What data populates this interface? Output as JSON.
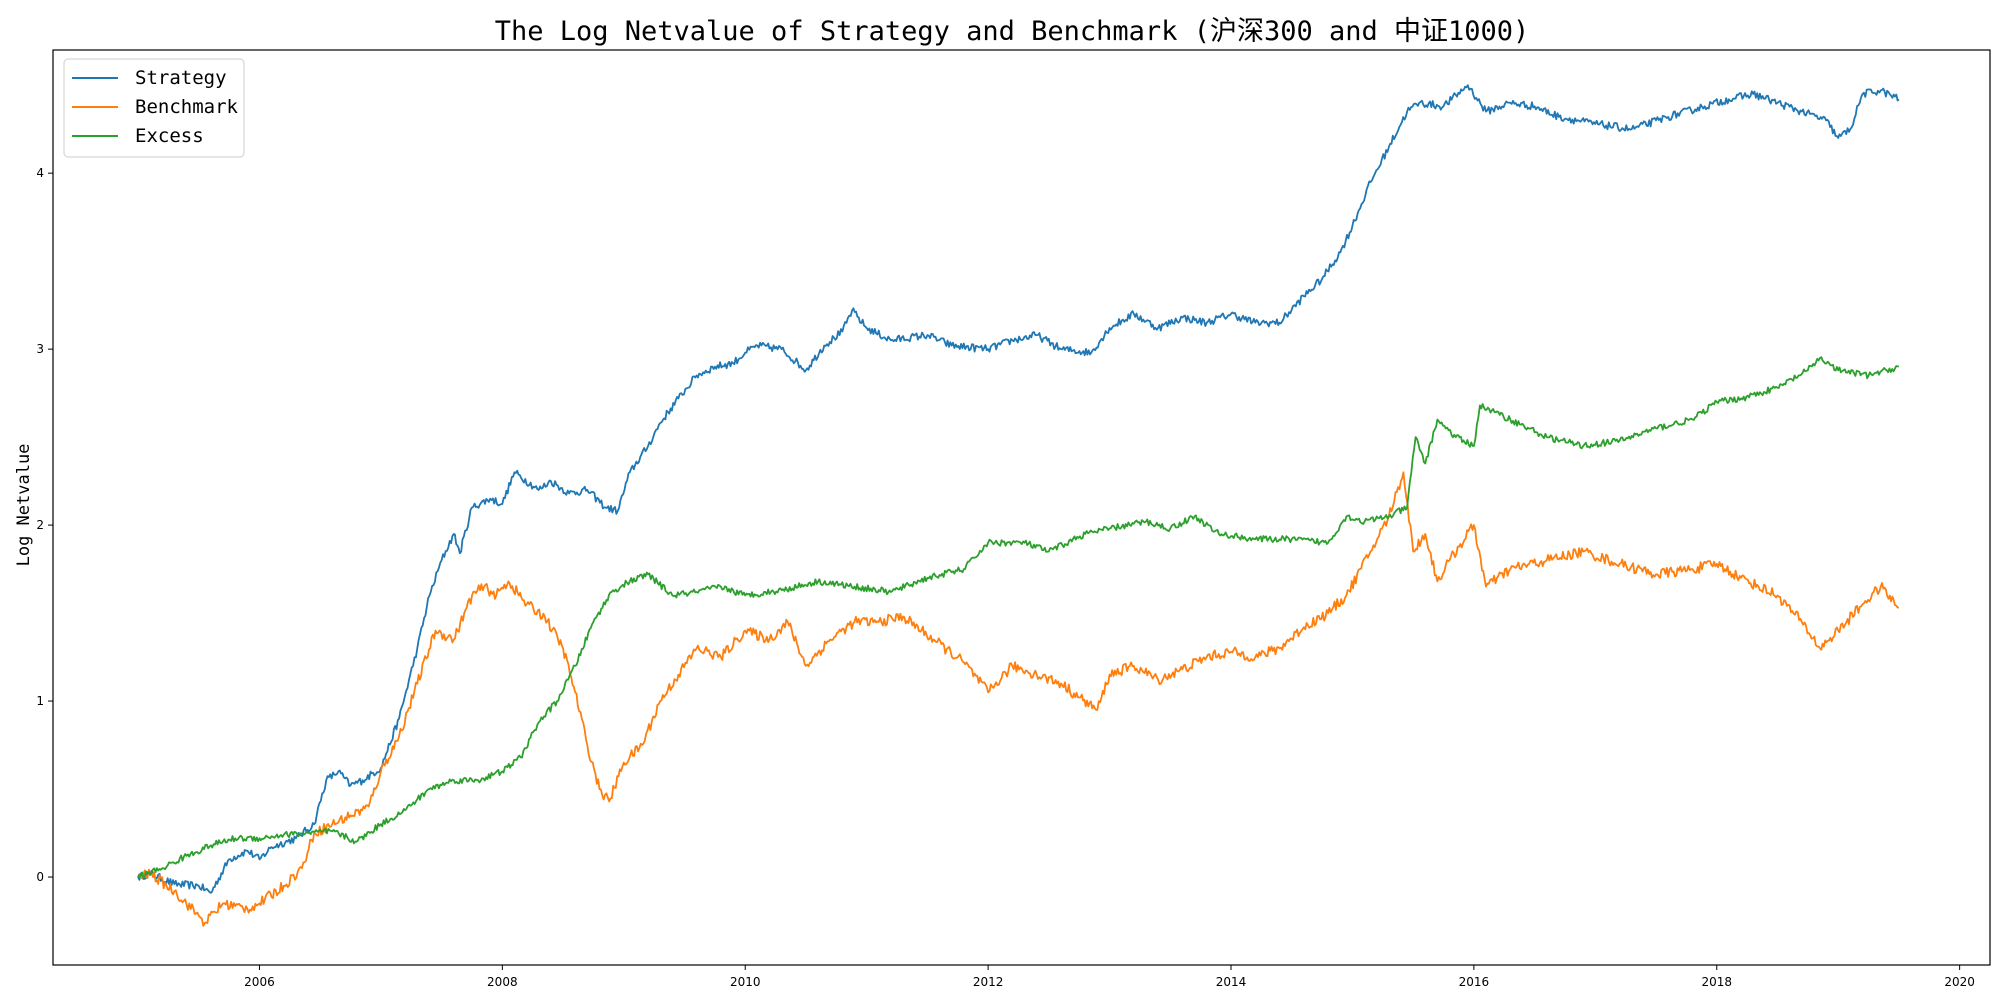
{
  "chart_data": {
    "type": "line",
    "title": "The Log Netvalue of Strategy and Benchmark (沪深300 and 中证1000)",
    "xlabel": "",
    "ylabel": "Log Netvalue",
    "xlim": [
      2004.3,
      2020.25
    ],
    "ylim": [
      -0.5,
      4.7
    ],
    "x_ticks": [
      2006,
      2008,
      2010,
      2012,
      2014,
      2016,
      2018,
      2020
    ],
    "x_tick_labels": [
      "2006",
      "2008",
      "2010",
      "2012",
      "2014",
      "2016",
      "2018",
      "2020"
    ],
    "y_ticks": [
      0,
      1,
      2,
      3,
      4
    ],
    "y_tick_labels": [
      "0",
      "1",
      "2",
      "3",
      "4"
    ],
    "grid": false,
    "legend": {
      "placement": "top-left",
      "entries": [
        "Strategy",
        "Benchmark",
        "Excess"
      ]
    },
    "series": [
      {
        "name": "Strategy",
        "color": "#1f77b4",
        "points": [
          [
            2005.0,
            0.0
          ],
          [
            2005.1,
            0.02
          ],
          [
            2005.3,
            -0.04
          ],
          [
            2005.5,
            -0.05
          ],
          [
            2005.6,
            -0.09
          ],
          [
            2005.75,
            0.1
          ],
          [
            2005.9,
            0.15
          ],
          [
            2006.0,
            0.1
          ],
          [
            2006.1,
            0.17
          ],
          [
            2006.3,
            0.22
          ],
          [
            2006.45,
            0.3
          ],
          [
            2006.55,
            0.55
          ],
          [
            2006.65,
            0.6
          ],
          [
            2006.75,
            0.52
          ],
          [
            2006.85,
            0.55
          ],
          [
            2007.0,
            0.62
          ],
          [
            2007.15,
            0.9
          ],
          [
            2007.3,
            1.3
          ],
          [
            2007.4,
            1.6
          ],
          [
            2007.5,
            1.8
          ],
          [
            2007.6,
            1.95
          ],
          [
            2007.65,
            1.84
          ],
          [
            2007.75,
            2.1
          ],
          [
            2007.9,
            2.15
          ],
          [
            2008.0,
            2.12
          ],
          [
            2008.1,
            2.3
          ],
          [
            2008.3,
            2.2
          ],
          [
            2008.4,
            2.25
          ],
          [
            2008.55,
            2.18
          ],
          [
            2008.7,
            2.2
          ],
          [
            2008.85,
            2.1
          ],
          [
            2008.95,
            2.08
          ],
          [
            2009.05,
            2.3
          ],
          [
            2009.2,
            2.45
          ],
          [
            2009.3,
            2.58
          ],
          [
            2009.45,
            2.72
          ],
          [
            2009.6,
            2.85
          ],
          [
            2009.75,
            2.9
          ],
          [
            2009.9,
            2.92
          ],
          [
            2010.0,
            2.98
          ],
          [
            2010.1,
            3.02
          ],
          [
            2010.3,
            3.0
          ],
          [
            2010.5,
            2.88
          ],
          [
            2010.65,
            3.02
          ],
          [
            2010.8,
            3.1
          ],
          [
            2010.88,
            3.22
          ],
          [
            2011.0,
            3.12
          ],
          [
            2011.2,
            3.05
          ],
          [
            2011.5,
            3.08
          ],
          [
            2011.7,
            3.02
          ],
          [
            2012.0,
            3.0
          ],
          [
            2012.2,
            3.05
          ],
          [
            2012.4,
            3.08
          ],
          [
            2012.6,
            3.0
          ],
          [
            2012.85,
            2.98
          ],
          [
            2013.0,
            3.12
          ],
          [
            2013.2,
            3.2
          ],
          [
            2013.4,
            3.12
          ],
          [
            2013.6,
            3.18
          ],
          [
            2013.8,
            3.15
          ],
          [
            2014.0,
            3.2
          ],
          [
            2014.2,
            3.15
          ],
          [
            2014.4,
            3.15
          ],
          [
            2014.6,
            3.3
          ],
          [
            2014.75,
            3.4
          ],
          [
            2014.9,
            3.55
          ],
          [
            2015.0,
            3.7
          ],
          [
            2015.15,
            3.95
          ],
          [
            2015.3,
            4.15
          ],
          [
            2015.45,
            4.35
          ],
          [
            2015.55,
            4.4
          ],
          [
            2015.75,
            4.38
          ],
          [
            2015.95,
            4.5
          ],
          [
            2016.1,
            4.35
          ],
          [
            2016.3,
            4.4
          ],
          [
            2016.5,
            4.38
          ],
          [
            2016.7,
            4.32
          ],
          [
            2017.0,
            4.28
          ],
          [
            2017.3,
            4.25
          ],
          [
            2017.6,
            4.32
          ],
          [
            2017.9,
            4.38
          ],
          [
            2018.1,
            4.42
          ],
          [
            2018.3,
            4.45
          ],
          [
            2018.5,
            4.4
          ],
          [
            2018.7,
            4.35
          ],
          [
            2018.9,
            4.3
          ],
          [
            2019.0,
            4.2
          ],
          [
            2019.1,
            4.25
          ],
          [
            2019.2,
            4.45
          ],
          [
            2019.35,
            4.47
          ],
          [
            2019.5,
            4.42
          ]
        ]
      },
      {
        "name": "Benchmark",
        "color": "#ff7f0e",
        "points": [
          [
            2005.0,
            0.0
          ],
          [
            2005.1,
            0.02
          ],
          [
            2005.3,
            -0.08
          ],
          [
            2005.5,
            -0.22
          ],
          [
            2005.55,
            -0.26
          ],
          [
            2005.7,
            -0.15
          ],
          [
            2005.9,
            -0.18
          ],
          [
            2006.0,
            -0.15
          ],
          [
            2006.2,
            -0.05
          ],
          [
            2006.35,
            0.05
          ],
          [
            2006.45,
            0.25
          ],
          [
            2006.6,
            0.3
          ],
          [
            2006.75,
            0.35
          ],
          [
            2006.9,
            0.4
          ],
          [
            2007.0,
            0.6
          ],
          [
            2007.15,
            0.8
          ],
          [
            2007.3,
            1.1
          ],
          [
            2007.45,
            1.4
          ],
          [
            2007.6,
            1.35
          ],
          [
            2007.75,
            1.6
          ],
          [
            2007.85,
            1.65
          ],
          [
            2007.95,
            1.6
          ],
          [
            2008.05,
            1.68
          ],
          [
            2008.2,
            1.55
          ],
          [
            2008.35,
            1.48
          ],
          [
            2008.5,
            1.3
          ],
          [
            2008.6,
            1.05
          ],
          [
            2008.7,
            0.75
          ],
          [
            2008.8,
            0.5
          ],
          [
            2008.88,
            0.43
          ],
          [
            2009.0,
            0.65
          ],
          [
            2009.15,
            0.75
          ],
          [
            2009.3,
            1.0
          ],
          [
            2009.45,
            1.15
          ],
          [
            2009.6,
            1.3
          ],
          [
            2009.8,
            1.25
          ],
          [
            2010.0,
            1.4
          ],
          [
            2010.2,
            1.35
          ],
          [
            2010.35,
            1.45
          ],
          [
            2010.5,
            1.2
          ],
          [
            2010.7,
            1.35
          ],
          [
            2010.9,
            1.45
          ],
          [
            2011.1,
            1.45
          ],
          [
            2011.3,
            1.48
          ],
          [
            2011.55,
            1.35
          ],
          [
            2011.8,
            1.22
          ],
          [
            2012.0,
            1.05
          ],
          [
            2012.2,
            1.2
          ],
          [
            2012.4,
            1.15
          ],
          [
            2012.6,
            1.1
          ],
          [
            2012.75,
            1.02
          ],
          [
            2012.9,
            0.95
          ],
          [
            2013.0,
            1.15
          ],
          [
            2013.2,
            1.2
          ],
          [
            2013.4,
            1.12
          ],
          [
            2013.6,
            1.18
          ],
          [
            2013.8,
            1.25
          ],
          [
            2014.0,
            1.28
          ],
          [
            2014.2,
            1.25
          ],
          [
            2014.4,
            1.3
          ],
          [
            2014.6,
            1.42
          ],
          [
            2014.8,
            1.5
          ],
          [
            2014.95,
            1.6
          ],
          [
            2015.15,
            1.85
          ],
          [
            2015.3,
            2.05
          ],
          [
            2015.42,
            2.3
          ],
          [
            2015.5,
            1.85
          ],
          [
            2015.6,
            1.95
          ],
          [
            2015.7,
            1.68
          ],
          [
            2015.8,
            1.8
          ],
          [
            2016.0,
            2.0
          ],
          [
            2016.1,
            1.65
          ],
          [
            2016.3,
            1.75
          ],
          [
            2016.6,
            1.8
          ],
          [
            2016.9,
            1.85
          ],
          [
            2017.2,
            1.78
          ],
          [
            2017.5,
            1.72
          ],
          [
            2017.8,
            1.75
          ],
          [
            2018.0,
            1.78
          ],
          [
            2018.2,
            1.7
          ],
          [
            2018.5,
            1.6
          ],
          [
            2018.7,
            1.45
          ],
          [
            2018.85,
            1.3
          ],
          [
            2019.0,
            1.4
          ],
          [
            2019.2,
            1.55
          ],
          [
            2019.35,
            1.65
          ],
          [
            2019.5,
            1.53
          ]
        ]
      },
      {
        "name": "Excess",
        "color": "#2ca02c",
        "points": [
          [
            2005.0,
            0.0
          ],
          [
            2005.2,
            0.05
          ],
          [
            2005.4,
            0.12
          ],
          [
            2005.6,
            0.18
          ],
          [
            2005.8,
            0.22
          ],
          [
            2006.0,
            0.22
          ],
          [
            2006.2,
            0.24
          ],
          [
            2006.4,
            0.25
          ],
          [
            2006.6,
            0.26
          ],
          [
            2006.8,
            0.2
          ],
          [
            2007.0,
            0.3
          ],
          [
            2007.2,
            0.38
          ],
          [
            2007.4,
            0.5
          ],
          [
            2007.6,
            0.55
          ],
          [
            2007.8,
            0.55
          ],
          [
            2008.0,
            0.6
          ],
          [
            2008.15,
            0.68
          ],
          [
            2008.3,
            0.88
          ],
          [
            2008.45,
            1.0
          ],
          [
            2008.6,
            1.2
          ],
          [
            2008.75,
            1.45
          ],
          [
            2008.9,
            1.62
          ],
          [
            2009.05,
            1.68
          ],
          [
            2009.2,
            1.72
          ],
          [
            2009.4,
            1.6
          ],
          [
            2009.6,
            1.62
          ],
          [
            2009.8,
            1.65
          ],
          [
            2010.0,
            1.6
          ],
          [
            2010.3,
            1.63
          ],
          [
            2010.6,
            1.68
          ],
          [
            2010.9,
            1.65
          ],
          [
            2011.2,
            1.62
          ],
          [
            2011.5,
            1.7
          ],
          [
            2011.8,
            1.75
          ],
          [
            2012.0,
            1.9
          ],
          [
            2012.3,
            1.9
          ],
          [
            2012.5,
            1.85
          ],
          [
            2012.8,
            1.95
          ],
          [
            2013.0,
            1.98
          ],
          [
            2013.3,
            2.02
          ],
          [
            2013.5,
            1.98
          ],
          [
            2013.7,
            2.05
          ],
          [
            2013.9,
            1.95
          ],
          [
            2014.2,
            1.92
          ],
          [
            2014.5,
            1.92
          ],
          [
            2014.8,
            1.9
          ],
          [
            2014.95,
            2.05
          ],
          [
            2015.1,
            2.02
          ],
          [
            2015.3,
            2.05
          ],
          [
            2015.45,
            2.1
          ],
          [
            2015.52,
            2.5
          ],
          [
            2015.6,
            2.35
          ],
          [
            2015.7,
            2.6
          ],
          [
            2015.85,
            2.5
          ],
          [
            2016.0,
            2.45
          ],
          [
            2016.05,
            2.68
          ],
          [
            2016.3,
            2.6
          ],
          [
            2016.6,
            2.5
          ],
          [
            2016.9,
            2.45
          ],
          [
            2017.2,
            2.48
          ],
          [
            2017.5,
            2.55
          ],
          [
            2017.8,
            2.6
          ],
          [
            2018.0,
            2.7
          ],
          [
            2018.2,
            2.72
          ],
          [
            2018.5,
            2.78
          ],
          [
            2018.75,
            2.88
          ],
          [
            2018.85,
            2.95
          ],
          [
            2019.0,
            2.88
          ],
          [
            2019.25,
            2.85
          ],
          [
            2019.4,
            2.88
          ],
          [
            2019.5,
            2.9
          ]
        ]
      }
    ]
  }
}
